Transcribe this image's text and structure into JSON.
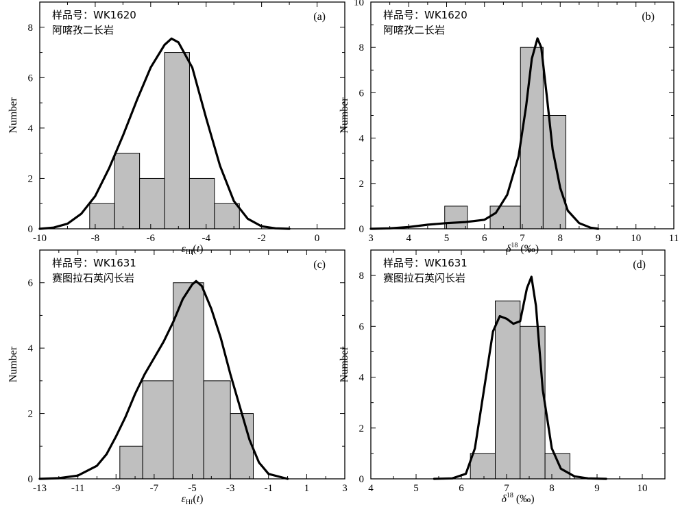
{
  "chart_data": [
    {
      "panel": "(a)",
      "type": "bar",
      "sample_label": "样品号：WK1620",
      "rock_name": "阿喀孜二长岩",
      "xlabel": "εHf(t)",
      "ylabel": "Number",
      "xlim": [
        -10,
        1
      ],
      "ylim": [
        0,
        9
      ],
      "xticks": [
        -10,
        -8,
        -6,
        -4,
        -2,
        0
      ],
      "yticks": [
        0,
        2,
        4,
        6,
        8
      ],
      "bins": [
        {
          "x0": -8.2,
          "x1": -7.3,
          "count": 1
        },
        {
          "x0": -7.3,
          "x1": -6.4,
          "count": 3
        },
        {
          "x0": -6.4,
          "x1": -5.5,
          "count": 2
        },
        {
          "x0": -5.5,
          "x1": -4.6,
          "count": 7
        },
        {
          "x0": -4.6,
          "x1": -3.7,
          "count": 2
        },
        {
          "x0": -3.7,
          "x1": -2.8,
          "count": 1
        }
      ],
      "density_curve": {
        "x": [
          -10,
          -9.5,
          -9,
          -8.5,
          -8,
          -7.5,
          -7,
          -6.5,
          -6,
          -5.5,
          -5.25,
          -5,
          -4.5,
          -4,
          -3.5,
          -3,
          -2.5,
          -2,
          -1.5,
          -1
        ],
        "y": [
          0,
          0.05,
          0.2,
          0.6,
          1.3,
          2.4,
          3.7,
          5.1,
          6.4,
          7.3,
          7.55,
          7.4,
          6.4,
          4.4,
          2.5,
          1.1,
          0.4,
          0.1,
          0.02,
          0
        ]
      }
    },
    {
      "panel": "(b)",
      "type": "bar",
      "sample_label": "样品号：WK1620",
      "rock_name": "阿喀孜二长岩",
      "xlabel": "δ18O (‰)",
      "ylabel": "Number",
      "xlim": [
        3,
        11
      ],
      "ylim": [
        0,
        10
      ],
      "xticks": [
        3,
        4,
        5,
        6,
        7,
        8,
        9,
        10,
        11
      ],
      "yticks": [
        0,
        2,
        4,
        6,
        8,
        10
      ],
      "bins": [
        {
          "x0": 4.95,
          "x1": 5.55,
          "count": 1
        },
        {
          "x0": 6.15,
          "x1": 6.95,
          "count": 1
        },
        {
          "x0": 6.95,
          "x1": 7.55,
          "count": 8
        },
        {
          "x0": 7.55,
          "x1": 8.15,
          "count": 5
        }
      ],
      "density_curve": {
        "x": [
          3,
          3.5,
          4,
          4.5,
          5,
          5.5,
          6,
          6.3,
          6.6,
          6.9,
          7.1,
          7.25,
          7.4,
          7.5,
          7.65,
          7.8,
          8,
          8.2,
          8.5,
          8.8,
          9
        ],
        "y": [
          0,
          0.02,
          0.08,
          0.18,
          0.25,
          0.3,
          0.4,
          0.7,
          1.5,
          3.2,
          5.4,
          7.5,
          8.4,
          8.0,
          5.8,
          3.5,
          1.8,
          0.8,
          0.25,
          0.05,
          0
        ]
      }
    },
    {
      "panel": "(c)",
      "type": "bar",
      "sample_label": "样品号：WK1631",
      "rock_name": "赛图拉石英闪长岩",
      "xlabel": "εHf(t)",
      "ylabel": "Number",
      "xlim": [
        -13,
        3
      ],
      "ylim": [
        0,
        7
      ],
      "xticks": [
        -13,
        -11,
        -9,
        -7,
        -5,
        -3,
        -1,
        1,
        3
      ],
      "yticks": [
        0,
        2,
        4,
        6
      ],
      "bins": [
        {
          "x0": -8.8,
          "x1": -7.6,
          "count": 1
        },
        {
          "x0": -7.6,
          "x1": -6.0,
          "count": 3
        },
        {
          "x0": -6.0,
          "x1": -4.4,
          "count": 6
        },
        {
          "x0": -4.4,
          "x1": -3.0,
          "count": 3
        },
        {
          "x0": -3.0,
          "x1": -1.8,
          "count": 2
        }
      ],
      "density_curve": {
        "x": [
          -13,
          -12,
          -11,
          -10,
          -9.5,
          -9,
          -8.5,
          -8,
          -7.5,
          -7,
          -6.5,
          -6,
          -5.5,
          -5,
          -4.8,
          -4.5,
          -4,
          -3.5,
          -3,
          -2.5,
          -2,
          -1.5,
          -1,
          0
        ],
        "y": [
          0,
          0.02,
          0.1,
          0.4,
          0.75,
          1.3,
          1.9,
          2.6,
          3.2,
          3.7,
          4.2,
          4.8,
          5.5,
          5.95,
          6.05,
          5.9,
          5.2,
          4.3,
          3.2,
          2.2,
          1.2,
          0.5,
          0.15,
          0
        ]
      }
    },
    {
      "panel": "(d)",
      "type": "bar",
      "sample_label": "样品号：WK1631",
      "rock_name": "赛图拉石英闪长岩",
      "xlabel": "δ18O (‰)",
      "ylabel": "Number",
      "xlim": [
        4,
        10.5
      ],
      "ylim": [
        0,
        9
      ],
      "xticks": [
        4,
        5,
        6,
        7,
        8,
        9,
        10
      ],
      "yticks": [
        0,
        2,
        4,
        6,
        8
      ],
      "bins": [
        {
          "x0": 6.2,
          "x1": 6.75,
          "count": 1
        },
        {
          "x0": 6.75,
          "x1": 7.3,
          "count": 7
        },
        {
          "x0": 7.3,
          "x1": 7.85,
          "count": 6
        },
        {
          "x0": 7.85,
          "x1": 8.4,
          "count": 1
        }
      ],
      "density_curve": {
        "x": [
          5.4,
          5.8,
          6.1,
          6.3,
          6.5,
          6.7,
          6.85,
          7.0,
          7.15,
          7.3,
          7.45,
          7.55,
          7.65,
          7.8,
          8.0,
          8.2,
          8.5,
          8.8,
          9.2
        ],
        "y": [
          0,
          0.02,
          0.2,
          1.2,
          3.5,
          5.8,
          6.4,
          6.3,
          6.1,
          6.2,
          7.5,
          7.95,
          6.8,
          3.5,
          1.2,
          0.4,
          0.1,
          0.02,
          0
        ]
      }
    }
  ]
}
